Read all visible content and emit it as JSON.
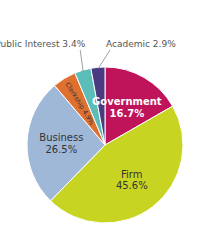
{
  "chart_data": {
    "type": "pie",
    "categories": [
      "Government",
      "Firm",
      "Business",
      "Clerkship",
      "Public Interest",
      "Academic"
    ],
    "values": [
      16.7,
      45.6,
      26.5,
      4.9,
      3.4,
      2.9
    ],
    "value_labels": [
      "16.7%",
      "45.6%",
      "26.5%",
      "4.9%",
      "3.4%",
      "2.9%"
    ],
    "colors": [
      "#c0145a",
      "#c8d422",
      "#a0b8d8",
      "#e07030",
      "#5bbcb8",
      "#4a3a82"
    ],
    "data_labels": true
  }
}
